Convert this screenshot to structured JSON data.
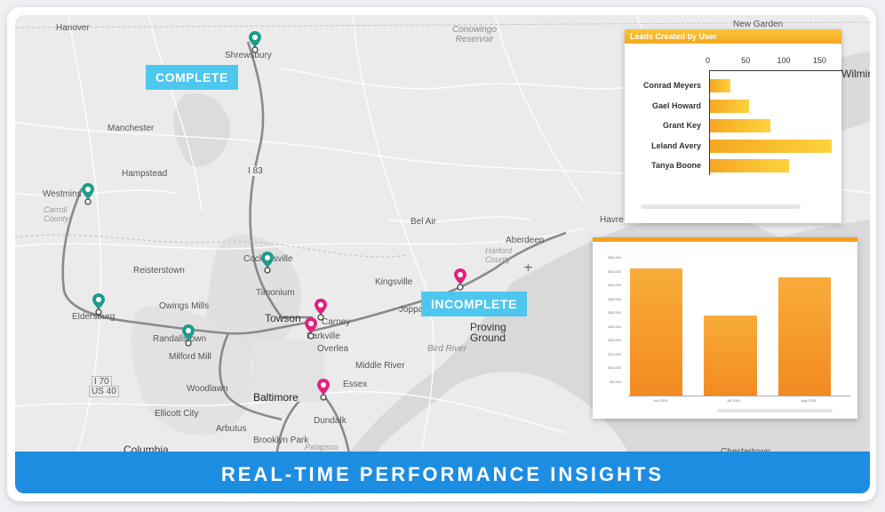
{
  "map": {
    "places": [
      {
        "name": "hanover",
        "text": "Hanover",
        "cls": ""
      },
      {
        "name": "shrewsbury",
        "text": "Shrewsbury",
        "cls": ""
      },
      {
        "name": "new-garden",
        "text": "New Garden",
        "cls": ""
      },
      {
        "name": "wilmington",
        "text": "Wilmin",
        "cls": "big"
      },
      {
        "name": "conowingo",
        "text": "Conowingo Reservoir",
        "cls": "water"
      },
      {
        "name": "manchester",
        "text": "Manchester",
        "cls": ""
      },
      {
        "name": "hampstead",
        "text": "Hampstead",
        "cls": ""
      },
      {
        "name": "westminster",
        "text": "Westmins",
        "cls": ""
      },
      {
        "name": "carroll",
        "text": "Carroll County",
        "cls": "italic"
      },
      {
        "name": "i83",
        "text": "I 83",
        "cls": ""
      },
      {
        "name": "bel-air",
        "text": "Bel Air",
        "cls": ""
      },
      {
        "name": "havre",
        "text": "Havre de Grace",
        "cls": ""
      },
      {
        "name": "aberdeen",
        "text": "Aberdeen",
        "cls": ""
      },
      {
        "name": "harford",
        "text": "Harford County",
        "cls": "italic"
      },
      {
        "name": "reisterstown",
        "text": "Reisterstown",
        "cls": ""
      },
      {
        "name": "cockeysville",
        "text": "Cockeysville",
        "cls": ""
      },
      {
        "name": "timonium",
        "text": "Timonium",
        "cls": ""
      },
      {
        "name": "kingsville",
        "text": "Kingsville",
        "cls": ""
      },
      {
        "name": "owings",
        "text": "Owings Mills",
        "cls": ""
      },
      {
        "name": "eldersburg",
        "text": "Eldersburg",
        "cls": ""
      },
      {
        "name": "towson",
        "text": "Towson",
        "cls": "big"
      },
      {
        "name": "carney",
        "text": "Carney",
        "cls": ""
      },
      {
        "name": "parkville",
        "text": "Parkville",
        "cls": ""
      },
      {
        "name": "joppatowne",
        "text": "Joppato",
        "cls": ""
      },
      {
        "name": "randallstown",
        "text": "Randallstown",
        "cls": ""
      },
      {
        "name": "milford",
        "text": "Milford Mill",
        "cls": ""
      },
      {
        "name": "overlea",
        "text": "Overlea",
        "cls": ""
      },
      {
        "name": "proving",
        "text": "Proving Ground",
        "cls": "big"
      },
      {
        "name": "bird-river",
        "text": "Bird River",
        "cls": "water"
      },
      {
        "name": "i70",
        "text": "I 70",
        "cls": ""
      },
      {
        "name": "us40",
        "text": "US 40",
        "cls": ""
      },
      {
        "name": "middle-river",
        "text": "Middle River",
        "cls": ""
      },
      {
        "name": "woodlawn",
        "text": "Woodlawn",
        "cls": ""
      },
      {
        "name": "baltimore",
        "text": "Baltimore",
        "cls": "city"
      },
      {
        "name": "essex",
        "text": "Essex",
        "cls": ""
      },
      {
        "name": "ellicott",
        "text": "Ellicott City",
        "cls": ""
      },
      {
        "name": "dundalk",
        "text": "Dundalk",
        "cls": ""
      },
      {
        "name": "arbutus",
        "text": "Arbutus",
        "cls": ""
      },
      {
        "name": "columbia",
        "text": "Columbia",
        "cls": "big"
      },
      {
        "name": "brooklyn",
        "text": "Brooklyn Park",
        "cls": ""
      },
      {
        "name": "patapsco",
        "text": "Patapsco",
        "cls": "italic"
      },
      {
        "name": "chestertown",
        "text": "Chestertown",
        "cls": ""
      }
    ],
    "callouts": {
      "complete": "COMPLETE",
      "incomplete": "INCOMPLETE"
    },
    "pins": [
      {
        "name": "pin-shrewsbury",
        "status": "complete"
      },
      {
        "name": "pin-westminster",
        "status": "complete"
      },
      {
        "name": "pin-cockeysville",
        "status": "complete"
      },
      {
        "name": "pin-eldersburg",
        "status": "complete"
      },
      {
        "name": "pin-randallstown",
        "status": "complete"
      },
      {
        "name": "pin-joppatowne",
        "status": "incomplete"
      },
      {
        "name": "pin-towson",
        "status": "incomplete"
      },
      {
        "name": "pin-parkville",
        "status": "incomplete"
      },
      {
        "name": "pin-baltimore",
        "status": "incomplete"
      }
    ],
    "colors": {
      "complete": "#1e9c8c",
      "incomplete": "#e0217f",
      "callout": "#4ec7ef"
    }
  },
  "leads_card": {
    "title": "Leads Created by User",
    "xticks": [
      "0",
      "50",
      "100",
      "150"
    ],
    "bar_color": "#f6a623"
  },
  "chart_data": [
    {
      "type": "bar",
      "orientation": "horizontal",
      "title": "Leads Created by User",
      "categories": [
        "Conrad Meyers",
        "Gael Howard",
        "Grant Key",
        "Leland Avery",
        "Tanya Boone"
      ],
      "values": [
        28,
        55,
        85,
        170,
        110
      ],
      "xlim": [
        0,
        180
      ],
      "xticks": [
        0,
        50,
        100,
        150
      ],
      "grid": false
    },
    {
      "type": "bar",
      "title": "",
      "categories": [
        "Jun 2024",
        "Jul 2024",
        "Aug 2024"
      ],
      "values": [
        46000,
        29000,
        43000
      ],
      "ylim": [
        0,
        50000
      ],
      "yticks": [
        "$5,000",
        "$10,000",
        "$15,000",
        "$20,000",
        "$25,000",
        "$30,000",
        "$35,000",
        "$40,000",
        "$45,000",
        "$50,000"
      ]
    }
  ],
  "banner": {
    "text": "REAL-TIME PERFORMANCE INSIGHTS",
    "color": "#1d8de1"
  }
}
